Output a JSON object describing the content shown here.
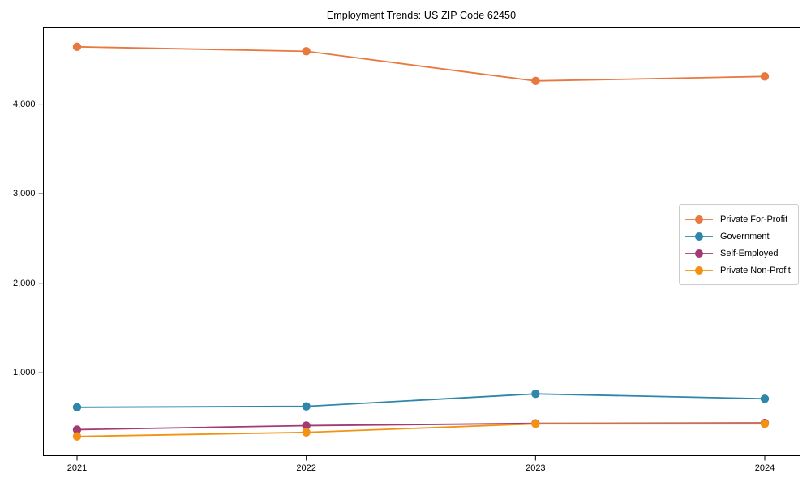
{
  "chart_data": {
    "type": "line",
    "title": "Employment Trends: US ZIP Code 62450",
    "x": [
      2021,
      2022,
      2023,
      2024
    ],
    "x_tick_labels": [
      "2021",
      "2022",
      "2023",
      "2024"
    ],
    "y_ticks": [
      1000,
      2000,
      3000,
      4000
    ],
    "y_tick_labels": [
      "1,000",
      "2,000",
      "3,000",
      "4,000"
    ],
    "ylim": [
      75,
      4860
    ],
    "grid": false,
    "legend_position": "middle-right",
    "frame_color": "#000000",
    "series": [
      {
        "name": "Private For-Profit",
        "color": "#E8783E",
        "values": [
          4640,
          4590,
          4260,
          4310
        ]
      },
      {
        "name": "Government",
        "color": "#2E86AB",
        "values": [
          615,
          625,
          765,
          710
        ]
      },
      {
        "name": "Self-Employed",
        "color": "#A23B72",
        "values": [
          365,
          410,
          435,
          440
        ]
      },
      {
        "name": "Private Non-Profit",
        "color": "#F39212",
        "values": [
          290,
          335,
          430,
          430
        ]
      }
    ]
  }
}
